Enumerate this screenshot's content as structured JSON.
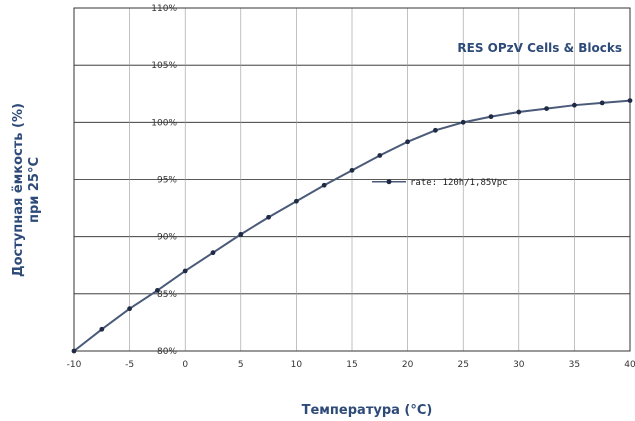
{
  "chart_data": {
    "type": "line",
    "xlabel": "Температура (°C)",
    "ylabel_line1": "Доступная ёмкость (%)",
    "ylabel_line2": "при 25°C",
    "annotation": "RES OPzV Cells & Blocks",
    "xlim": [
      -10,
      40
    ],
    "ylim": [
      80,
      110
    ],
    "x_ticks": [
      "-10",
      "-5",
      "0",
      "5",
      "10",
      "15",
      "20",
      "25",
      "30",
      "35",
      "40"
    ],
    "y_ticks": [
      "80%",
      "85%",
      "90%",
      "95%",
      "100%",
      "105%",
      "110%"
    ],
    "grid": true,
    "legend_position": "right",
    "series": [
      {
        "name": "rate: 120h/1,85Vpc",
        "color": "#4a5a78",
        "marker_color": "#1f2a44",
        "x": [
          -10,
          -7.5,
          -5,
          -2.5,
          0,
          2.5,
          5,
          7.5,
          10,
          12.5,
          15,
          17.5,
          20,
          22.5,
          25,
          27.5,
          30,
          32.5,
          35,
          37.5,
          40
        ],
        "y": [
          80.0,
          81.9,
          83.7,
          85.3,
          87.0,
          88.6,
          90.2,
          91.7,
          93.1,
          94.5,
          95.8,
          97.1,
          98.3,
          99.3,
          100.0,
          100.5,
          100.9,
          101.2,
          101.5,
          101.7,
          101.9
        ]
      }
    ]
  }
}
